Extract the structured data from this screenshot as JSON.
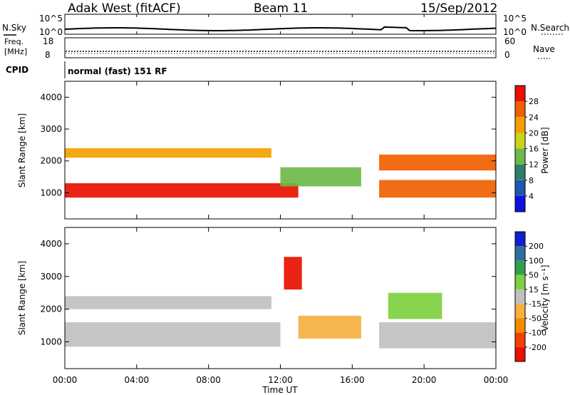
{
  "header": {
    "station": "Adak West (fitACF)",
    "beam": "Beam 11",
    "date": "15/Sep/2012"
  },
  "nsky": {
    "label": "N.Sky",
    "tick_top": "10^5",
    "tick_bottom": "10^0",
    "right_tick_top": "10^5",
    "right_tick_bottom": "10^0",
    "right_label": "N.Search"
  },
  "freq": {
    "label_line1": "Freq.",
    "label_line2": "[MHz]",
    "tick_top": "18",
    "tick_bottom": "8",
    "right_tick_top": "60",
    "right_tick_bottom": "0",
    "right_label": "Nave"
  },
  "cpid": {
    "label": "CPID",
    "text": "normal (fast) 151 RF"
  },
  "power_panel": {
    "ylabel": "Slant Range [km]",
    "yticks": [
      "1000",
      "2000",
      "3000",
      "4000"
    ],
    "colorbar_label": "Power [dB]",
    "colorbar_ticks": [
      "4",
      "8",
      "12",
      "16",
      "20",
      "24",
      "28"
    ],
    "colorbar_colors": [
      "#1010e0",
      "#1f57b0",
      "#2f7f6a",
      "#6fb84a",
      "#c9d21c",
      "#f5a000",
      "#f06000",
      "#e81000"
    ]
  },
  "velocity_panel": {
    "ylabel": "Slant Range [km]",
    "yticks": [
      "1000",
      "2000",
      "3000",
      "4000"
    ],
    "colorbar_label": "Velocity [m s⁻¹]",
    "colorbar_ticks": [
      "-200",
      "-100",
      "-50",
      "-15",
      "15",
      "50",
      "100",
      "200"
    ],
    "colorbar_colors": [
      "#e81000",
      "#f04000",
      "#f58a00",
      "#f5b040",
      "#c0c0c0",
      "#7fd040",
      "#2f9f4f",
      "#2f6f9f",
      "#1020d0"
    ]
  },
  "xaxis": {
    "label": "Time UT",
    "ticks": [
      "00:00",
      "04:00",
      "08:00",
      "12:00",
      "16:00",
      "20:00",
      "00:00"
    ]
  },
  "chart_data": [
    {
      "type": "heatmap",
      "title": "Power",
      "x_label": "Time UT",
      "y_label": "Slant Range [km]",
      "xlim": [
        "00:00",
        "24:00"
      ],
      "ylim": [
        180,
        4500
      ],
      "color_label": "Power [dB]",
      "color_range": [
        0,
        32
      ],
      "bands": [
        {
          "t_start": 0.0,
          "t_end": 13.0,
          "range_start": 850,
          "range_end": 1300,
          "value": 28
        },
        {
          "t_start": 0.0,
          "t_end": 11.5,
          "range_start": 2100,
          "range_end": 2400,
          "value": 22
        },
        {
          "t_start": 12.0,
          "t_end": 16.5,
          "range_start": 1200,
          "range_end": 1800,
          "value": 14
        },
        {
          "t_start": 17.5,
          "t_end": 24.0,
          "range_start": 850,
          "range_end": 1400,
          "value": 27
        },
        {
          "t_start": 17.5,
          "t_end": 24.0,
          "range_start": 1700,
          "range_end": 2200,
          "value": 24
        }
      ]
    },
    {
      "type": "heatmap",
      "title": "Velocity",
      "x_label": "Time UT",
      "y_label": "Slant Range [km]",
      "xlim": [
        "00:00",
        "24:00"
      ],
      "ylim": [
        180,
        4500
      ],
      "color_label": "Velocity [m s⁻¹]",
      "color_range": [
        -250,
        250
      ],
      "bands": [
        {
          "t_start": 0.0,
          "t_end": 12.0,
          "range_start": 850,
          "range_end": 1600,
          "value": 0
        },
        {
          "t_start": 0.0,
          "t_end": 11.5,
          "range_start": 2000,
          "range_end": 2400,
          "value": 0
        },
        {
          "t_start": 13.0,
          "t_end": 16.5,
          "range_start": 1100,
          "range_end": 1800,
          "value": -60
        },
        {
          "t_start": 12.2,
          "t_end": 13.2,
          "range_start": 2600,
          "range_end": 3600,
          "value": -200
        },
        {
          "t_start": 17.5,
          "t_end": 24.0,
          "range_start": 800,
          "range_end": 1600,
          "value": 0
        },
        {
          "t_start": 18.0,
          "t_end": 21.0,
          "range_start": 1700,
          "range_end": 2500,
          "value": 60
        }
      ]
    }
  ]
}
